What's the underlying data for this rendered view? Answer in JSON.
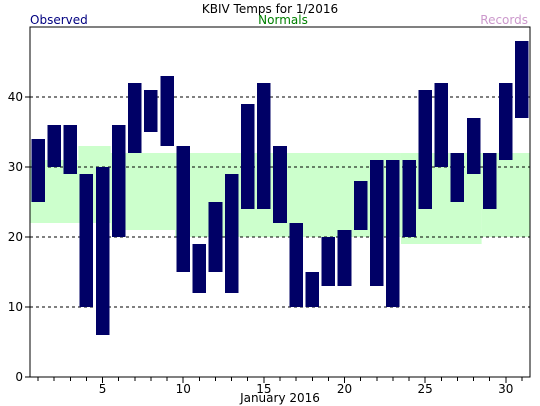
{
  "chart_data": {
    "type": "bar",
    "title": "KBIV Temps for 1/2016",
    "xlabel": "January 2016",
    "ylabel": "",
    "ylim": [
      0,
      50
    ],
    "xlim": [
      0.5,
      31.5
    ],
    "x_ticks": [
      5,
      10,
      15,
      20,
      25,
      30
    ],
    "y_ticks": [
      0,
      10,
      20,
      30,
      40
    ],
    "grid": "horizontal dashed",
    "legend": [
      {
        "label": "Observed",
        "color": "#000080",
        "position": "top-left"
      },
      {
        "label": "Normals",
        "color": "#008000",
        "position": "top-center"
      },
      {
        "label": "Records",
        "color": "#cc99cc",
        "position": "top-right"
      }
    ],
    "days": [
      1,
      2,
      3,
      4,
      5,
      6,
      7,
      8,
      9,
      10,
      11,
      12,
      13,
      14,
      15,
      16,
      17,
      18,
      19,
      20,
      21,
      22,
      23,
      24,
      25,
      26,
      27,
      28,
      29,
      30,
      31
    ],
    "series": [
      {
        "name": "Observed",
        "color": "#000066",
        "high": [
          34,
          36,
          36,
          29,
          30,
          36,
          42,
          41,
          43,
          33,
          19,
          25,
          29,
          39,
          42,
          33,
          22,
          15,
          20,
          21,
          28,
          31,
          31,
          31,
          41,
          42,
          32,
          37,
          32,
          42,
          48
        ],
        "low": [
          25,
          30,
          29,
          10,
          6,
          20,
          32,
          35,
          33,
          15,
          12,
          15,
          12,
          24,
          24,
          22,
          10,
          10,
          13,
          13,
          21,
          13,
          10,
          20,
          24,
          30,
          25,
          29,
          24,
          31,
          37
        ]
      },
      {
        "name": "Normals",
        "color": "#ccffcc",
        "segments": [
          {
            "from": 0.5,
            "to": 3.5,
            "low": 22,
            "high": 31
          },
          {
            "from": 3.5,
            "to": 5.5,
            "low": 22,
            "high": 33
          },
          {
            "from": 5.5,
            "to": 9.5,
            "low": 21,
            "high": 32
          },
          {
            "from": 9.5,
            "to": 23.5,
            "low": 20,
            "high": 32
          },
          {
            "from": 23.5,
            "to": 28.5,
            "low": 19,
            "high": 32
          },
          {
            "from": 28.5,
            "to": 31.5,
            "low": 20,
            "high": 32
          }
        ]
      }
    ]
  }
}
